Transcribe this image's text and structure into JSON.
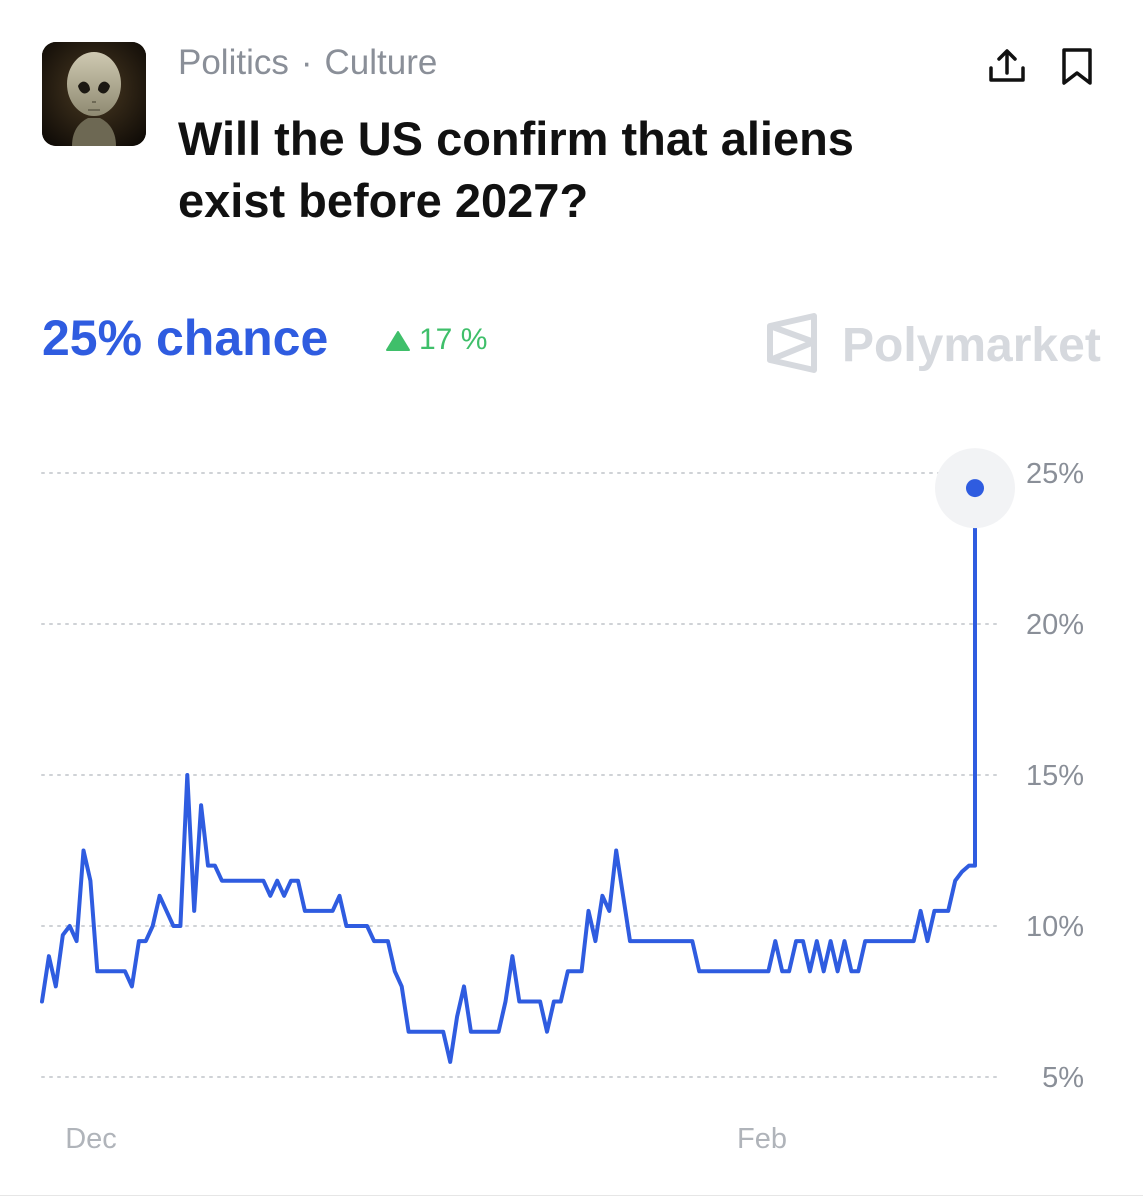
{
  "header": {
    "category": "Politics",
    "separator": "·",
    "subcategory": "Culture",
    "title": "Will the US confirm that aliens exist before 2027?",
    "share_icon": "share-icon",
    "bookmark_icon": "bookmark-icon"
  },
  "summary": {
    "chance_text": "25% chance",
    "change_text": "17 %",
    "change_direction": "up",
    "brand": "Polymarket"
  },
  "colors": {
    "line": "#2f5ce0",
    "up": "#3fbf6a",
    "grid": "#cfd2d6",
    "axis_text": "#8a8f98"
  },
  "chart_data": {
    "type": "line",
    "title": "",
    "xlabel": "",
    "ylabel": "",
    "x_tick_labels": [
      "Dec",
      "Feb"
    ],
    "y_tick_labels": [
      "25%",
      "20%",
      "15%",
      "10%",
      "5%"
    ],
    "y_ticks": [
      25,
      20,
      15,
      10,
      5
    ],
    "ylim": [
      5,
      25
    ],
    "grid": true,
    "series": [
      {
        "values": [
          7.5,
          9,
          8,
          9.7,
          10,
          9.5,
          12.5,
          11.5,
          8.5,
          8.5,
          8.5,
          8.5,
          8.5,
          8,
          9.5,
          9.5,
          10,
          11,
          10.5,
          10,
          10,
          15,
          10.5,
          14,
          12,
          12,
          11.5,
          11.5,
          11.5,
          11.5,
          11.5,
          11.5,
          11.5,
          11,
          11.5,
          11,
          11.5,
          11.5,
          10.5,
          10.5,
          10.5,
          10.5,
          10.5,
          11,
          10,
          10,
          10,
          10,
          9.5,
          9.5,
          9.5,
          8.5,
          8,
          6.5,
          6.5,
          6.5,
          6.5,
          6.5,
          6.5,
          5.5,
          7,
          8,
          6.5,
          6.5,
          6.5,
          6.5,
          6.5,
          7.5,
          9,
          7.5,
          7.5,
          7.5,
          7.5,
          6.5,
          7.5,
          7.5,
          8.5,
          8.5,
          8.5,
          10.5,
          9.5,
          11,
          10.5,
          12.5,
          11,
          9.5,
          9.5,
          9.5,
          9.5,
          9.5,
          9.5,
          9.5,
          9.5,
          9.5,
          9.5,
          8.5,
          8.5,
          8.5,
          8.5,
          8.5,
          8.5,
          8.5,
          8.5,
          8.5,
          8.5,
          8.5,
          9.5,
          8.5,
          8.5,
          9.5,
          9.5,
          8.5,
          9.5,
          8.5,
          9.5,
          8.5,
          9.5,
          8.5,
          8.5,
          9.5,
          9.5,
          9.5,
          9.5,
          9.5,
          9.5,
          9.5,
          9.5,
          10.5,
          9.5,
          10.5,
          10.5,
          10.5,
          11.5,
          11.8,
          12,
          24.5
        ],
        "last_value": 24.5
      }
    ]
  }
}
